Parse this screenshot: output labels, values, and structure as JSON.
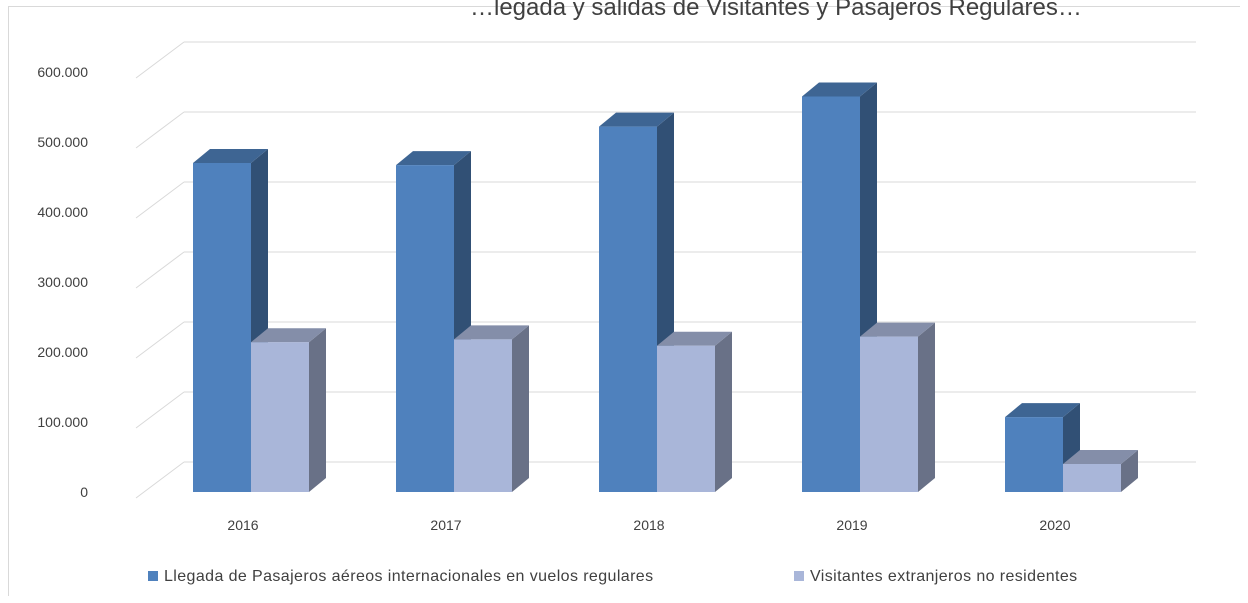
{
  "chart_data": {
    "type": "bar",
    "title": "…legada y salidas de Visitantes y Pasajeros Regulares…",
    "categories": [
      "2016",
      "2017",
      "2018",
      "2019",
      "2020"
    ],
    "series": [
      {
        "name": "Llegada de Pasajeros aéreos internacionales en vuelos regulares",
        "values": [
          470000,
          467000,
          522000,
          565000,
          107000
        ],
        "color": "#4f81bd"
      },
      {
        "name": "Visitantes extranjeros no residentes",
        "values": [
          214000,
          218000,
          209000,
          222000,
          40000
        ],
        "color": "#a9b6d9"
      }
    ],
    "yticks": [
      "0",
      "100.000",
      "200.000",
      "300.000",
      "400.000",
      "500.000",
      "600.000"
    ],
    "ylim": [
      0,
      600000
    ],
    "xlabel": "",
    "ylabel": "",
    "grid": true,
    "legend_position": "bottom"
  }
}
